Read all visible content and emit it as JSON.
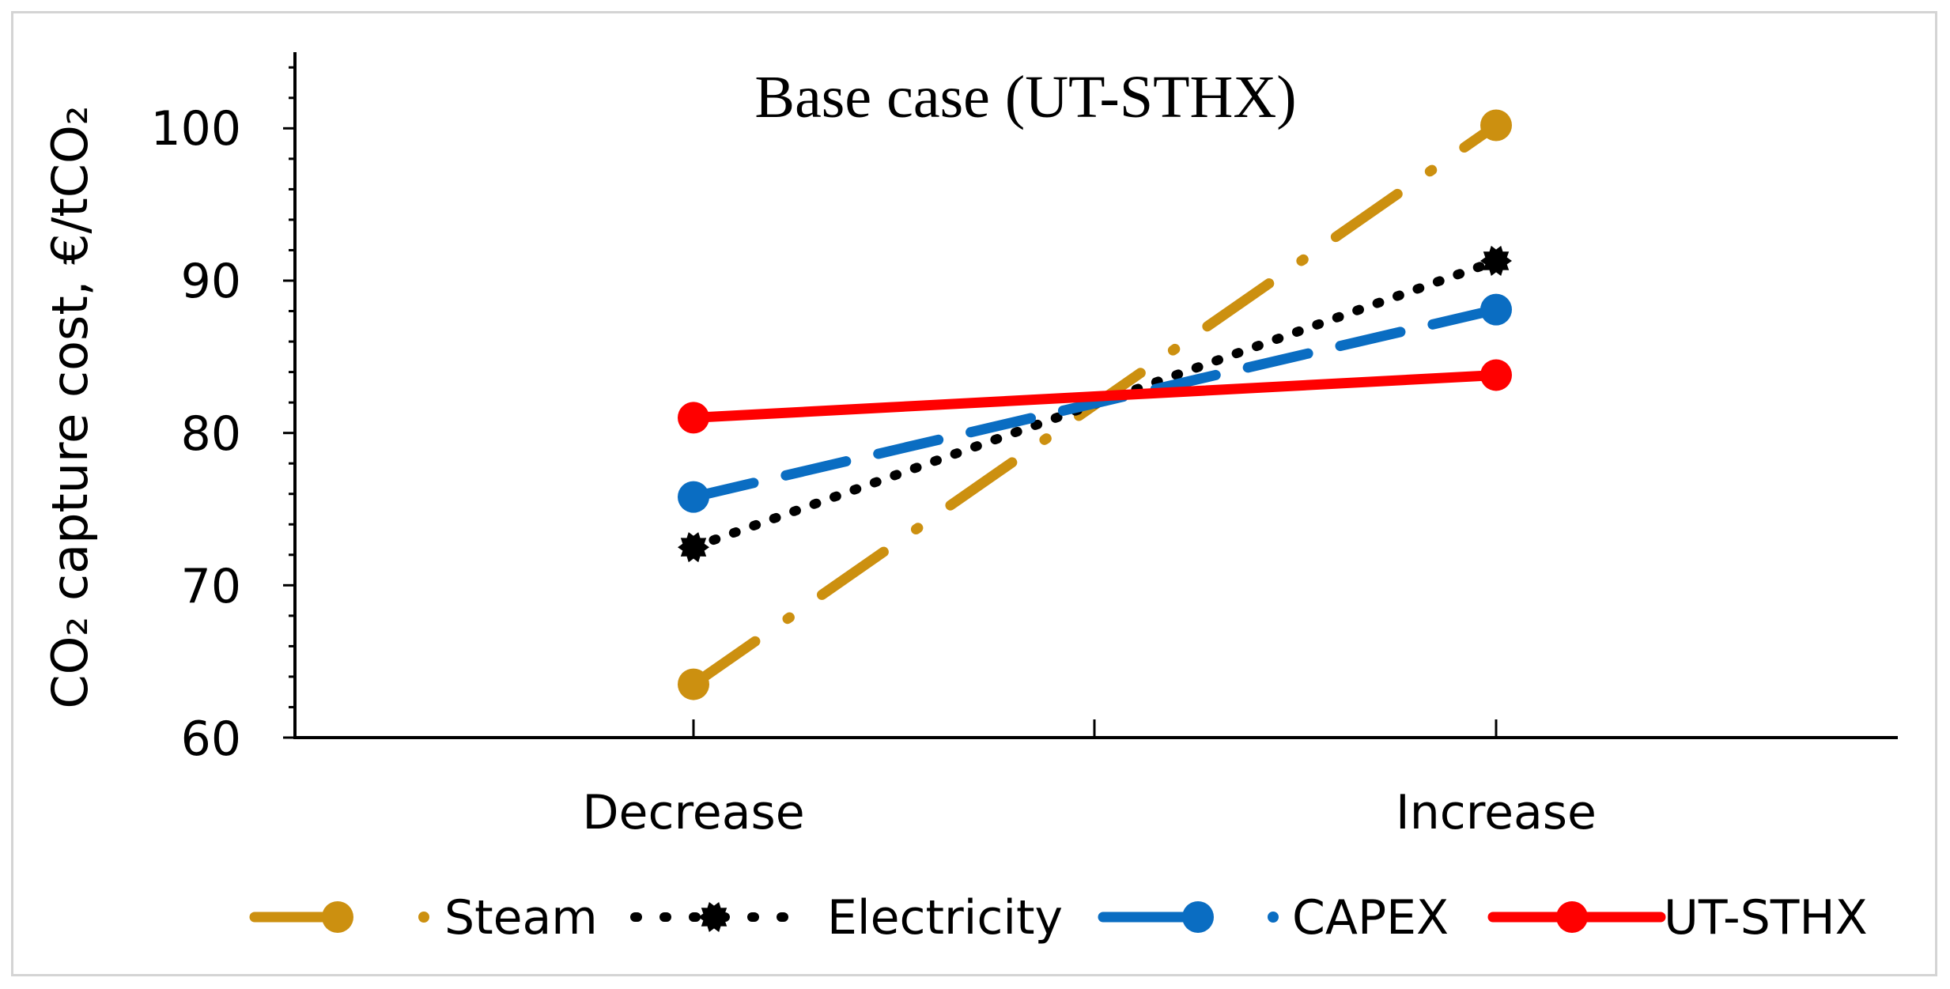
{
  "chart_data": {
    "type": "line",
    "title": "Base case (UT-STHX)",
    "xlabel": "",
    "ylabel": "CO₂ capture cost, €/tCO₂",
    "categories": [
      "Decrease",
      "Increase"
    ],
    "ylim": [
      60,
      105
    ],
    "yticks": [
      60,
      70,
      80,
      90,
      100
    ],
    "grid": false,
    "legend_position": "bottom",
    "series": [
      {
        "name": "Steam",
        "values": [
          63.5,
          100.2
        ],
        "color": "#CC9010",
        "style": "long-dash-dot",
        "marker": "circle"
      },
      {
        "name": "Electricity",
        "values": [
          72.5,
          91.3
        ],
        "color": "#000000",
        "style": "dotted",
        "marker": "starburst"
      },
      {
        "name": "CAPEX",
        "values": [
          75.8,
          88.1
        ],
        "color": "#0A6DC2",
        "style": "long-dash",
        "marker": "circle"
      },
      {
        "name": "UT-STHX",
        "values": [
          81.0,
          83.8
        ],
        "color": "#FF0000",
        "style": "solid",
        "marker": "circle"
      }
    ]
  }
}
